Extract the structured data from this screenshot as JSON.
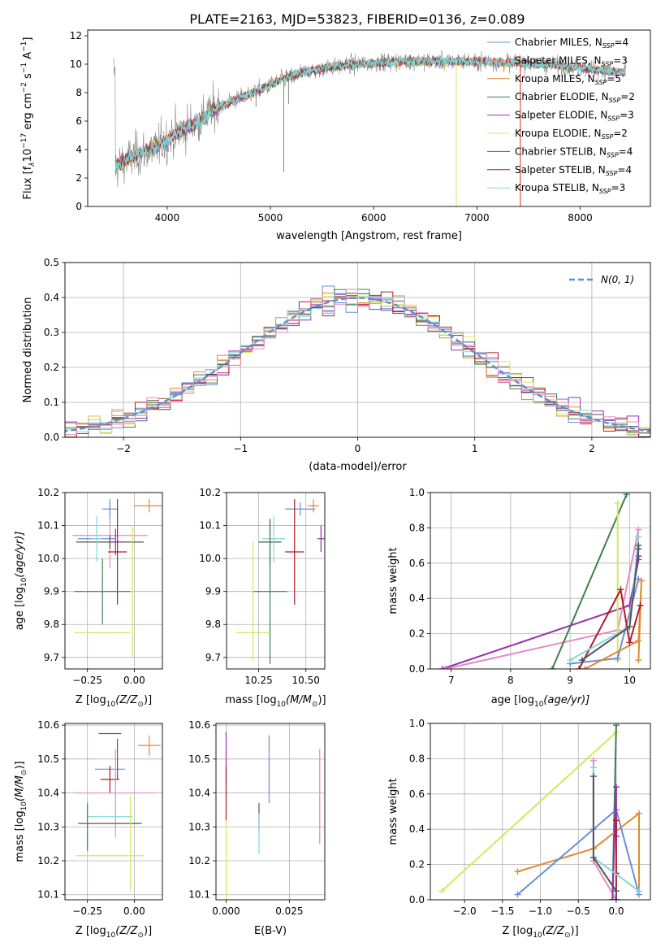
{
  "figure": {
    "title": "PLATE=2163, MJD=53823, FIBERID=0136, z=0.089"
  },
  "model_colors": {
    "Chabrier MILES": "#6a8fd8",
    "Salpeter MILES": "#e87a7a",
    "Kroupa MILES": "#e08a2e",
    "Chabrier ELODIE": "#3f7f4f",
    "Salpeter ELODIE": "#9a2fb0",
    "Kroupa ELODIE": "#d4e85a",
    "Chabrier STELIB": "#555555",
    "Salpeter STELIB": "#b01c2a",
    "Kroupa STELIB": "#7fd8dc",
    "pink_trace": "#e58ac0",
    "data": "#888888"
  },
  "chart_data": [
    {
      "id": "spectrum",
      "type": "line",
      "ylabel": "Flux [f",
      "ylabel_sub": "λ",
      "ylabel_rest": "10",
      "ylabel_exp1": "−17",
      "ylabel_mid": " erg cm",
      "ylabel_exp2": "−2",
      "ylabel_mid2": " s",
      "ylabel_exp3": "−1",
      "ylabel_end": " A",
      "ylabel_exp4": "−1",
      "ylabel_close": "]",
      "xlabel": "wavelength [Angstrom, rest frame]",
      "xlim": [
        3230,
        8680
      ],
      "ylim": [
        0,
        12.4
      ],
      "xticks": [
        4000,
        5000,
        6000,
        7000,
        8000
      ],
      "yticks": [
        0,
        2,
        4,
        6,
        8,
        10,
        12
      ],
      "continuum": [
        [
          3500,
          2.8
        ],
        [
          3700,
          3.6
        ],
        [
          3900,
          4.2
        ],
        [
          4100,
          5.2
        ],
        [
          4300,
          6.0
        ],
        [
          4500,
          7.0
        ],
        [
          4700,
          7.6
        ],
        [
          4900,
          8.2
        ],
        [
          5100,
          8.9
        ],
        [
          5300,
          9.4
        ],
        [
          5500,
          9.7
        ],
        [
          5700,
          9.9
        ],
        [
          6000,
          10.1
        ],
        [
          6300,
          10.2
        ],
        [
          6600,
          10.2
        ],
        [
          7000,
          10.2
        ],
        [
          7400,
          10.1
        ],
        [
          7800,
          9.9
        ],
        [
          8200,
          9.6
        ],
        [
          8440,
          9.4
        ]
      ],
      "legend": [
        {
          "label": "Chabrier MILES, N",
          "sub": "SSP",
          "value": "=4",
          "color_key": "Chabrier MILES"
        },
        {
          "label": "Salpeter MILES, N",
          "sub": "SSP",
          "value": "=3",
          "color_key": "Salpeter MILES"
        },
        {
          "label": "Kroupa MILES, N",
          "sub": "SSP",
          "value": "=5",
          "color_key": "Kroupa MILES"
        },
        {
          "label": "Chabrier ELODIE, N",
          "sub": "SSP",
          "value": "=2",
          "color_key": "Chabrier ELODIE"
        },
        {
          "label": "Salpeter ELODIE, N",
          "sub": "SSP",
          "value": "=3",
          "color_key": "Salpeter ELODIE"
        },
        {
          "label": "Kroupa ELODIE, N",
          "sub": "SSP",
          "value": "=2",
          "color_key": "Kroupa ELODIE"
        },
        {
          "label": "Chabrier STELIB, N",
          "sub": "SSP",
          "value": "=4",
          "color_key": "Chabrier STELIB"
        },
        {
          "label": "Salpeter STELIB, N",
          "sub": "SSP",
          "value": "=4",
          "color_key": "Salpeter STELIB"
        },
        {
          "label": "Kroupa STELIB, N",
          "sub": "SSP",
          "value": "=3",
          "color_key": "Kroupa STELIB"
        }
      ],
      "legend_placement": "upper-right",
      "grid": false
    },
    {
      "id": "residuals",
      "type": "line",
      "xlabel": "(data-model)/error",
      "ylabel": "Normed distribution",
      "xlim": [
        -2.5,
        2.5
      ],
      "ylim": [
        0,
        0.5
      ],
      "xticks": [
        -2,
        -1,
        0,
        1,
        2
      ],
      "xtick_labels": [
        "−2",
        "−1",
        "0",
        "1",
        "2"
      ],
      "yticks": [
        0.0,
        0.1,
        0.2,
        0.3,
        0.4,
        0.5
      ],
      "ytick_labels": [
        "0.0",
        "0.1",
        "0.2",
        "0.3",
        "0.4",
        "0.5"
      ],
      "bin_width": 0.1,
      "reference_curve": {
        "label": "N(0, 1)",
        "mean": 0,
        "sigma": 1,
        "style": "dashed",
        "color": "#5b8fd6"
      },
      "legend_placement": "upper-right",
      "grid": true
    },
    {
      "id": "age_vs_Z",
      "type": "scatter",
      "xlabel": "Z [log",
      "xlabel_sub": "10",
      "xlabel_rest": "(Z/Z",
      "xlabel_sub2": "⊙",
      "xlabel_close": ")]",
      "ylabel": "age  [log",
      "ylabel_sub": "10",
      "ylabel_rest": "(age/yr)]",
      "xlim": [
        -0.37,
        0.15
      ],
      "ylim": [
        9.665,
        10.2
      ],
      "xticks": [
        -0.25,
        0.0
      ],
      "xtick_labels": [
        "−0.25",
        "0.00"
      ],
      "yticks": [
        9.7,
        9.8,
        9.9,
        10.0,
        10.1,
        10.2
      ],
      "ytick_labels": [
        "9.7",
        "9.8",
        "9.9",
        "10.0",
        "10.1",
        "10.2"
      ],
      "points": [
        {
          "c": "pink_trace",
          "x": -0.13,
          "xe": 0.2,
          "y": 10.07,
          "ye": 0.1
        },
        {
          "c": "Chabrier MILES",
          "x": -0.13,
          "xe": 0.04,
          "y": 10.15,
          "ye": 0.03
        },
        {
          "c": "Kroupa MILES",
          "x": 0.08,
          "xe": 0.08,
          "y": 10.16,
          "ye": 0.02
        },
        {
          "c": "Chabrier MILES",
          "x": -0.2,
          "xe": 0.1,
          "y": 10.06,
          "ye": 0.0
        },
        {
          "c": "Chabrier STELIB",
          "x": -0.13,
          "xe": 0.18,
          "y": 10.05,
          "ye": 0.02
        },
        {
          "c": "Salpeter ELODIE",
          "x": -0.1,
          "xe": 0.03,
          "y": 10.05,
          "ye": 0.04
        },
        {
          "c": "Salpeter STELIB",
          "x": -0.09,
          "xe": 0.05,
          "y": 10.02,
          "ye": 0.16
        },
        {
          "c": "Chabrier ELODIE",
          "x": -0.17,
          "xe": 0.15,
          "y": 9.9,
          "ye": 0.1
        },
        {
          "c": "Kroupa STELIB",
          "x": -0.2,
          "xe": 0.03,
          "y": 10.06,
          "ye": 0.07
        },
        {
          "c": "Kroupa ELODIE",
          "x": -0.17,
          "xe": 0.15,
          "y": 9.775,
          "ye": 0.0
        },
        {
          "c": "Kroupa ELODIE",
          "x": -0.01,
          "xe": 0.0,
          "y": 9.9,
          "ye": 0.2
        }
      ],
      "grid": true
    },
    {
      "id": "age_vs_mass",
      "type": "scatter",
      "xlabel": "mass [log",
      "xlabel_sub": "10",
      "xlabel_rest": "(M/M",
      "xlabel_sub2": "⊙",
      "xlabel_close": ")]",
      "xlim": [
        10.08,
        10.6
      ],
      "ylim": [
        9.665,
        10.2
      ],
      "xticks": [
        10.25,
        10.5
      ],
      "xtick_labels": [
        "10.25",
        "10.50"
      ],
      "yticks": [
        9.7,
        9.8,
        9.9,
        10.0,
        10.1,
        10.2
      ],
      "ytick_labels": [
        "9.7",
        "9.8",
        "9.9",
        "10.0",
        "10.1",
        "10.2"
      ],
      "points": [
        {
          "c": "Chabrier MILES",
          "x": 10.47,
          "xe": 0.08,
          "y": 10.15,
          "ye": 0.02
        },
        {
          "c": "Kroupa MILES",
          "x": 10.54,
          "xe": 0.03,
          "y": 10.16,
          "ye": 0.02
        },
        {
          "c": "Salpeter ELODIE",
          "x": 10.58,
          "xe": 0.02,
          "y": 10.06,
          "ye": 0.04
        },
        {
          "c": "Chabrier STELIB",
          "x": 10.31,
          "xe": 0.06,
          "y": 10.05,
          "ye": 0.07
        },
        {
          "c": "Kroupa STELIB",
          "x": 10.33,
          "xe": 0.06,
          "y": 10.06,
          "ye": 0.07
        },
        {
          "c": "Salpeter STELIB",
          "x": 10.44,
          "xe": 0.05,
          "y": 10.02,
          "ye": 0.16
        },
        {
          "c": "Chabrier ELODIE",
          "x": 10.31,
          "xe": 0.09,
          "y": 9.9,
          "ye": 0.22
        },
        {
          "c": "Kroupa ELODIE",
          "x": 10.22,
          "xe": 0.09,
          "y": 9.775,
          "ye": 0.0
        },
        {
          "c": "Kroupa ELODIE",
          "x": 10.22,
          "xe": 0.0,
          "y": 9.87,
          "ye": 0.18
        }
      ],
      "grid": true
    },
    {
      "id": "weight_vs_age",
      "type": "line",
      "xlabel": "age  [log",
      "xlabel_sub": "10",
      "xlabel_rest": "(age/yr)]",
      "ylabel": "mass weight",
      "xlim": [
        6.65,
        10.35
      ],
      "ylim": [
        0,
        1.0
      ],
      "xticks": [
        7,
        8,
        9,
        10
      ],
      "xtick_labels": [
        "7",
        "8",
        "9",
        "10"
      ],
      "yticks": [
        0.0,
        0.2,
        0.4,
        0.6,
        0.8,
        1.0
      ],
      "ytick_labels": [
        "0.0",
        "0.2",
        "0.4",
        "0.6",
        "0.8",
        "1.0"
      ],
      "series": [
        {
          "c": "Salpeter ELODIE",
          "x": [
            6.85,
            10.0,
            10.15,
            10.15
          ],
          "y": [
            0.0,
            0.36,
            0.62,
            0.64
          ]
        },
        {
          "c": "pink_trace",
          "x": [
            6.9,
            9.8,
            10.15
          ],
          "y": [
            0.0,
            0.22,
            0.79
          ]
        },
        {
          "c": "Chabrier ELODIE",
          "x": [
            8.7,
            9.95
          ],
          "y": [
            0.0,
            0.99
          ]
        },
        {
          "c": "Kroupa ELODIE",
          "x": [
            9.8,
            9.8
          ],
          "y": [
            0.05,
            0.94
          ]
        },
        {
          "c": "Chabrier MILES",
          "x": [
            9.0,
            9.8,
            10.15
          ],
          "y": [
            0.03,
            0.06,
            0.51
          ]
        },
        {
          "c": "Kroupa MILES",
          "x": [
            9.25,
            10.15,
            10.2,
            10.15
          ],
          "y": [
            0.0,
            0.16,
            0.5,
            0.05
          ]
        },
        {
          "c": "Salpeter STELIB",
          "x": [
            9.15,
            9.85,
            10.0,
            10.18
          ],
          "y": [
            0.0,
            0.45,
            0.15,
            0.36
          ]
        },
        {
          "c": "Kroupa STELIB",
          "x": [
            9.0,
            10.0,
            10.15
          ],
          "y": [
            0.05,
            0.24,
            0.75
          ]
        },
        {
          "c": "Chabrier STELIB",
          "x": [
            9.2,
            10.0,
            10.15,
            10.15
          ],
          "y": [
            0.05,
            0.24,
            0.68,
            0.7
          ]
        }
      ],
      "grid": true
    },
    {
      "id": "mass_vs_Z",
      "type": "scatter",
      "xlabel": "Z [log",
      "xlabel_sub": "10",
      "xlabel_rest": "(Z/Z",
      "xlabel_sub2": "⊙",
      "xlabel_close": ")]",
      "ylabel": "mass [log",
      "ylabel_sub": "10",
      "ylabel_rest": "(M/M",
      "ylabel_sub2": "⊙",
      "ylabel_close": ")]",
      "xlim": [
        -0.37,
        0.15
      ],
      "ylim": [
        10.085,
        10.605
      ],
      "xticks": [
        -0.25,
        0.0
      ],
      "xtick_labels": [
        "−0.25",
        "0.00"
      ],
      "yticks": [
        10.1,
        10.2,
        10.3,
        10.4,
        10.5,
        10.6
      ],
      "ytick_labels": [
        "10.1",
        "10.2",
        "10.3",
        "10.4",
        "10.5",
        "10.6"
      ],
      "points": [
        {
          "c": "Salpeter ELODIE",
          "x": -0.13,
          "xe": 0.06,
          "y": 10.575,
          "ye": 0.0
        },
        {
          "c": "Kroupa MILES",
          "x": 0.08,
          "xe": 0.06,
          "y": 10.54,
          "ye": 0.03
        },
        {
          "c": "Chabrier MILES",
          "x": -0.13,
          "xe": 0.08,
          "y": 10.47,
          "ye": 0.0
        },
        {
          "c": "Salpeter ELODIE",
          "x": -0.09,
          "xe": 0.0,
          "y": 10.5,
          "ye": 0.06
        },
        {
          "c": "Salpeter STELIB",
          "x": -0.13,
          "xe": 0.05,
          "y": 10.44,
          "ye": 0.04
        },
        {
          "c": "pink_trace",
          "x": -0.1,
          "xe": 0.22,
          "y": 10.4,
          "ye": 0.13
        },
        {
          "c": "Kroupa STELIB",
          "x": -0.13,
          "xe": 0.12,
          "y": 10.33,
          "ye": 0.0
        },
        {
          "c": "Chabrier STELIB",
          "x": -0.13,
          "xe": 0.17,
          "y": 10.31,
          "ye": 0.0
        },
        {
          "c": "Chabrier ELODIE",
          "x": -0.25,
          "xe": 0.0,
          "y": 10.3,
          "ye": 0.07
        },
        {
          "c": "Kroupa ELODIE",
          "x": -0.13,
          "xe": 0.18,
          "y": 10.215,
          "ye": 0.0
        },
        {
          "c": "Kroupa ELODIE",
          "x": -0.02,
          "xe": 0.0,
          "y": 10.25,
          "ye": 0.14
        }
      ],
      "grid": true
    },
    {
      "id": "mass_vs_ebv",
      "type": "scatter",
      "xlabel": "E(B-V)",
      "xlim": [
        -0.004,
        0.039
      ],
      "ylim": [
        10.085,
        10.605
      ],
      "xticks": [
        0.0,
        0.025
      ],
      "xtick_labels": [
        "0.000",
        "0.025"
      ],
      "yticks": [
        10.1,
        10.2,
        10.3,
        10.4,
        10.5,
        10.6
      ],
      "ytick_labels": [
        "10.1",
        "10.2",
        "10.3",
        "10.4",
        "10.5",
        "10.6"
      ],
      "points": [
        {
          "c": "Salpeter ELODIE",
          "x": 0.0,
          "xe": 0.0,
          "y": 10.5,
          "ye": 0.08
        },
        {
          "c": "Salpeter STELIB",
          "x": 0.0,
          "xe": 0.0,
          "y": 10.4,
          "ye": 0.08
        },
        {
          "c": "Kroupa ELODIE",
          "x": 0.0,
          "xe": 0.0,
          "y": 10.2,
          "ye": 0.12
        },
        {
          "c": "Chabrier MILES",
          "x": 0.017,
          "xe": 0.0,
          "y": 10.47,
          "ye": 0.1
        },
        {
          "c": "Chabrier STELIB",
          "x": 0.013,
          "xe": 0.0,
          "y": 10.33,
          "ye": 0.04
        },
        {
          "c": "Kroupa STELIB",
          "x": 0.013,
          "xe": 0.0,
          "y": 10.28,
          "ye": 0.06
        },
        {
          "c": "pink_trace",
          "x": 0.037,
          "xe": 0.0,
          "y": 10.39,
          "ye": 0.14
        }
      ],
      "grid": true
    },
    {
      "id": "weight_vs_Z",
      "type": "line",
      "xlabel": "Z [log",
      "xlabel_sub": "10",
      "xlabel_rest": "(Z/Z",
      "xlabel_sub2": "⊙",
      "xlabel_close": ")]",
      "ylabel": "mass weight",
      "xlim": [
        -2.45,
        0.45
      ],
      "ylim": [
        0,
        1.0
      ],
      "xticks": [
        -2.0,
        -1.5,
        -1.0,
        -0.5,
        0.0
      ],
      "xtick_labels": [
        "−2.0",
        "−1.5",
        "−1.0",
        "−0.5",
        "0.0"
      ],
      "yticks": [
        0.0,
        0.2,
        0.4,
        0.6,
        0.8,
        1.0
      ],
      "ytick_labels": [
        "0.0",
        "0.2",
        "0.4",
        "0.6",
        "0.8",
        "1.0"
      ],
      "series": [
        {
          "c": "Kroupa ELODIE",
          "x": [
            -2.3,
            0.0
          ],
          "y": [
            0.05,
            0.95
          ]
        },
        {
          "c": "Chabrier ELODIE",
          "x": [
            -0.05,
            0.0,
            -0.05
          ],
          "y": [
            0.0,
            0.99,
            0.0
          ]
        },
        {
          "c": "Kroupa MILES",
          "x": [
            -1.3,
            -0.3,
            0.3,
            0.3
          ],
          "y": [
            0.16,
            0.29,
            0.49,
            0.05
          ]
        },
        {
          "c": "Chabrier MILES",
          "x": [
            -1.3,
            -0.3,
            0.0,
            0.3
          ],
          "y": [
            0.03,
            0.4,
            0.51,
            0.03
          ]
        },
        {
          "c": "pink_trace",
          "x": [
            -0.3,
            -0.3,
            0.0
          ],
          "y": [
            0.79,
            0.22,
            0.0
          ]
        },
        {
          "c": "Salpeter ELODIE",
          "x": [
            -0.05,
            0.0,
            0.0
          ],
          "y": [
            0.0,
            0.64,
            0.36
          ]
        },
        {
          "c": "Salpeter STELIB",
          "x": [
            0.0,
            0.0,
            0.0
          ],
          "y": [
            0.0,
            0.45,
            0.15
          ]
        },
        {
          "c": "Kroupa STELIB",
          "x": [
            -0.3,
            -0.3,
            0.3
          ],
          "y": [
            0.75,
            0.24,
            0.05
          ]
        },
        {
          "c": "Chabrier STELIB",
          "x": [
            -0.3,
            -0.3,
            0.0,
            0.0
          ],
          "y": [
            0.7,
            0.24,
            0.05,
            0.0
          ]
        }
      ],
      "grid": true
    }
  ]
}
